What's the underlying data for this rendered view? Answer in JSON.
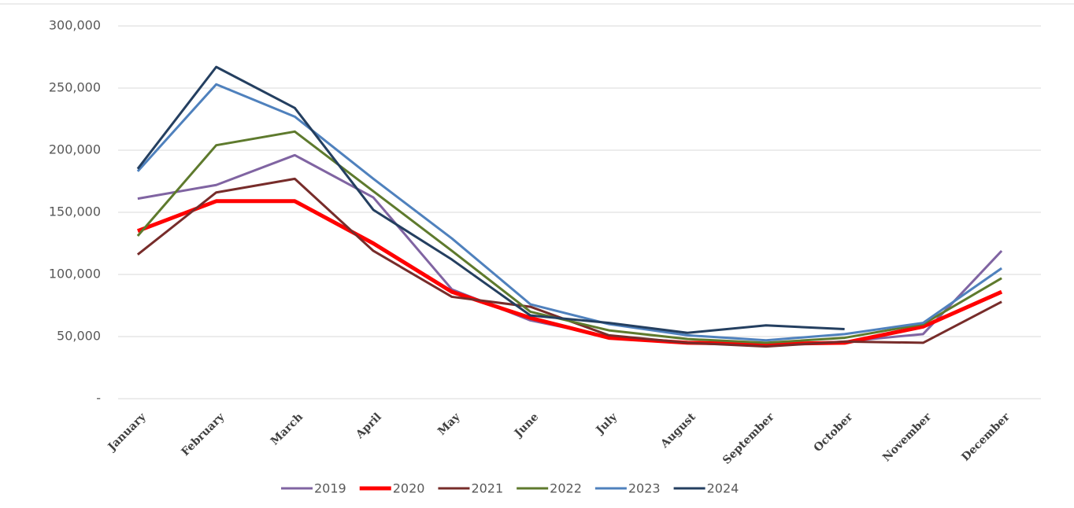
{
  "chart_data": {
    "type": "line",
    "categories": [
      "January",
      "February",
      "March",
      "April",
      "May",
      "June",
      "July",
      "August",
      "September",
      "October",
      "November",
      "December"
    ],
    "series": [
      {
        "name": "2019",
        "color": "#8064a2",
        "line_width": 3,
        "values": [
          161000,
          172000,
          196000,
          162000,
          88000,
          63000,
          50000,
          45000,
          43000,
          46000,
          52000,
          119000
        ]
      },
      {
        "name": "2020",
        "color": "#ff0000",
        "line_width": 5,
        "values": [
          135000,
          159000,
          159000,
          125000,
          86000,
          65000,
          49000,
          45000,
          44000,
          45000,
          58000,
          86000
        ]
      },
      {
        "name": "2021",
        "color": "#772c2a",
        "line_width": 3,
        "values": [
          116000,
          166000,
          177000,
          119000,
          82000,
          74000,
          51000,
          45000,
          42000,
          46000,
          45000,
          78000
        ]
      },
      {
        "name": "2022",
        "color": "#5e7a2d",
        "line_width": 3,
        "values": [
          131000,
          204000,
          215000,
          167000,
          119000,
          70000,
          55000,
          48000,
          45000,
          49000,
          60000,
          97000
        ]
      },
      {
        "name": "2023",
        "color": "#4f81bd",
        "line_width": 3,
        "values": [
          183000,
          253000,
          227000,
          177000,
          129000,
          76000,
          60000,
          51000,
          47000,
          52000,
          61000,
          105000
        ]
      },
      {
        "name": "2024",
        "color": "#243f60",
        "line_width": 3,
        "values": [
          185000,
          267000,
          234000,
          152000,
          112000,
          67000,
          61000,
          53000,
          59000,
          56000,
          null,
          null
        ]
      }
    ],
    "ylim": [
      0,
      300000
    ],
    "yticks": [
      {
        "value": 0,
        "label": "-"
      },
      {
        "value": 50000,
        "label": "50,000"
      },
      {
        "value": 100000,
        "label": "100,000"
      },
      {
        "value": 150000,
        "label": "150,000"
      },
      {
        "value": 200000,
        "label": "200,000"
      },
      {
        "value": 250000,
        "label": "250,000"
      },
      {
        "value": 300000,
        "label": "300,000"
      }
    ],
    "grid": true,
    "legend": "bottom"
  }
}
